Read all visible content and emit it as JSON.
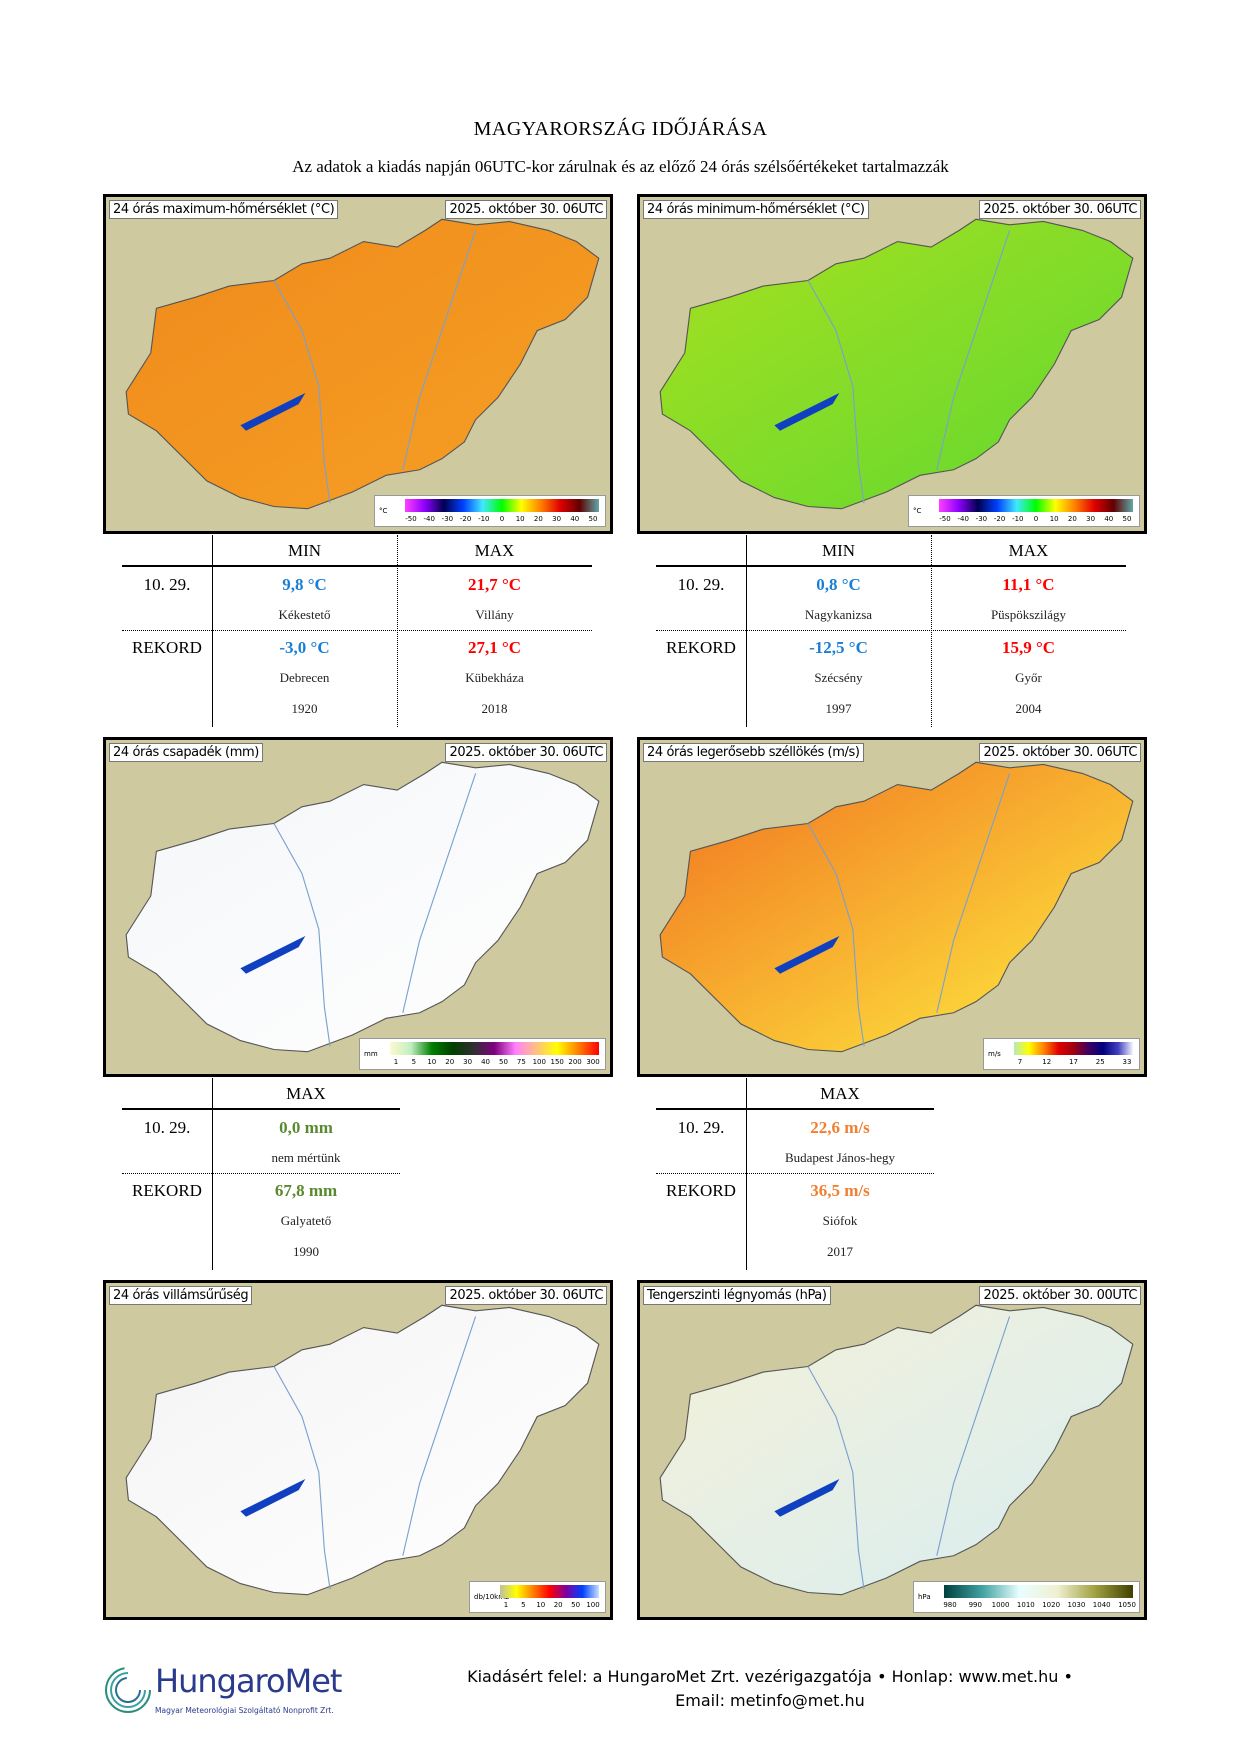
{
  "header": {
    "title": "MAGYARORSZÁG IDŐJÁRÁSA",
    "subtitle": "Az adatok a kiadás napján 06UTC-kor zárulnak és az előző 24 órás szélsőértékeket tartalmazzák"
  },
  "maps": [
    {
      "title": "24 órás maximum-hőmérséklet (°C)",
      "date": "2025. október 30. 06UTC",
      "fill": "#f5a024",
      "fill2": "#f08a1c",
      "legend": {
        "unit": "°C",
        "ticks": [
          "-50",
          "-40",
          "-30",
          "-20",
          "-10",
          "0",
          "10",
          "20",
          "30",
          "40",
          "50"
        ],
        "colors": [
          "#ff40ff",
          "#9000ff",
          "#000050",
          "#0040ff",
          "#40e8ff",
          "#00ff00",
          "#ffff00",
          "#ff8000",
          "#e00000",
          "#600000",
          "#60a8a8"
        ]
      }
    },
    {
      "title": "24 órás minimum-hőmérséklet (°C)",
      "date": "2025. október 30. 06UTC",
      "fill": "#60d830",
      "fill2": "#a8e020",
      "legend": {
        "unit": "°C",
        "ticks": [
          "-50",
          "-40",
          "-30",
          "-20",
          "-10",
          "0",
          "10",
          "20",
          "30",
          "40",
          "50"
        ],
        "colors": [
          "#ff40ff",
          "#9000ff",
          "#000050",
          "#0040ff",
          "#40e8ff",
          "#00ff00",
          "#ffff00",
          "#ff8000",
          "#e00000",
          "#600000",
          "#60a8a8"
        ]
      }
    },
    {
      "title": "24 órás csapadék (mm)",
      "date": "2025. október 30. 06UTC",
      "fill": "#ffffff",
      "fill2": "#f4f6f8",
      "legend": {
        "unit": "mm",
        "ticks": [
          "1",
          "5",
          "10",
          "20",
          "30",
          "40",
          "50",
          "75",
          "100",
          "150",
          "200",
          "300"
        ],
        "colors": [
          "#fff8d0",
          "#c0f0c0",
          "#008000",
          "#004000",
          "#303030",
          "#800080",
          "#ff80ff",
          "#ffc080",
          "#ffff00",
          "#ff8000",
          "#ff0000"
        ]
      }
    },
    {
      "title": "24 órás legerősebb széllökés (m/s)",
      "date": "2025. október 30. 06UTC",
      "fill": "#fff040",
      "fill2": "#f07020",
      "legend": {
        "unit": "m/s",
        "ticks": [
          "7",
          "12",
          "17",
          "25",
          "33"
        ],
        "colors": [
          "#b8e8b8",
          "#ffff00",
          "#ff8000",
          "#e00000",
          "#a00010",
          "#400060",
          "#000080",
          "#4040c0",
          "#f4f4ff"
        ]
      }
    },
    {
      "title": "24 órás villámsűrűség",
      "date": "2025. október 30. 06UTC",
      "fill": "#ffffff",
      "fill2": "#f4f4f4",
      "legend": {
        "unit": "db/10km2",
        "ticks": [
          "1",
          "5",
          "10",
          "20",
          "50",
          "100"
        ],
        "colors": [
          "#c0c0a0",
          "#ffff00",
          "#ff8000",
          "#ff0000",
          "#8000a0",
          "#0040ff",
          "#c8e0ff"
        ]
      }
    },
    {
      "title": "Tengerszinti légnyomás (hPa)",
      "date": "2025. október 30. 00UTC",
      "fill": "#d8eef2",
      "fill2": "#f4f0d8",
      "legend": {
        "unit": "hPa",
        "ticks": [
          "980",
          "990",
          "1000",
          "1010",
          "1020",
          "1030",
          "1040",
          "1050"
        ],
        "colors": [
          "#004040",
          "#40a0a0",
          "#e8ffff",
          "#f0f0d0",
          "#a0a040",
          "#404000"
        ]
      }
    }
  ],
  "tables": {
    "temp_max": {
      "min_header": "MIN",
      "max_header": "MAX",
      "day": "10. 29.",
      "record": "REKORD",
      "day_min": "9,8 °C",
      "day_min_place": "Kékestető",
      "day_max": "21,7 °C",
      "day_max_place": "Villány",
      "rec_min": "-3,0 °C",
      "rec_min_place": "Debrecen",
      "rec_min_year": "1920",
      "rec_max": "27,1 °C",
      "rec_max_place": "Kübekháza",
      "rec_max_year": "2018"
    },
    "temp_min": {
      "min_header": "MIN",
      "max_header": "MAX",
      "day": "10. 29.",
      "record": "REKORD",
      "day_min": "0,8 °C",
      "day_min_place": "Nagykanizsa",
      "day_max": "11,1 °C",
      "day_max_place": "Püspökszilágy",
      "rec_min": "-12,5 °C",
      "rec_min_place": "Szécsény",
      "rec_min_year": "1997",
      "rec_max": "15,9 °C",
      "rec_max_place": "Győr",
      "rec_max_year": "2004"
    },
    "precip": {
      "max_header": "MAX",
      "day": "10. 29.",
      "record": "REKORD",
      "day_max": "0,0 mm",
      "day_max_place": "nem mértünk",
      "rec_max": "67,8 mm",
      "rec_max_place": "Galyatető",
      "rec_max_year": "1990"
    },
    "wind": {
      "max_header": "MAX",
      "day": "10. 29.",
      "record": "REKORD",
      "day_max": "22,6 m/s",
      "day_max_place": "Budapest János-hegy",
      "rec_max": "36,5 m/s",
      "rec_max_place": "Siófok",
      "rec_max_year": "2017"
    }
  },
  "footer": {
    "logo_name": "HungaroMet",
    "logo_sub": "Magyar Meteorológiai Szolgáltató Nonprofit Zrt.",
    "line1": "Kiadásért felel: a HungaroMet Zrt. vezérigazgatója • Honlap: www.met.hu •",
    "line2": "Email: metinfo@met.hu"
  }
}
